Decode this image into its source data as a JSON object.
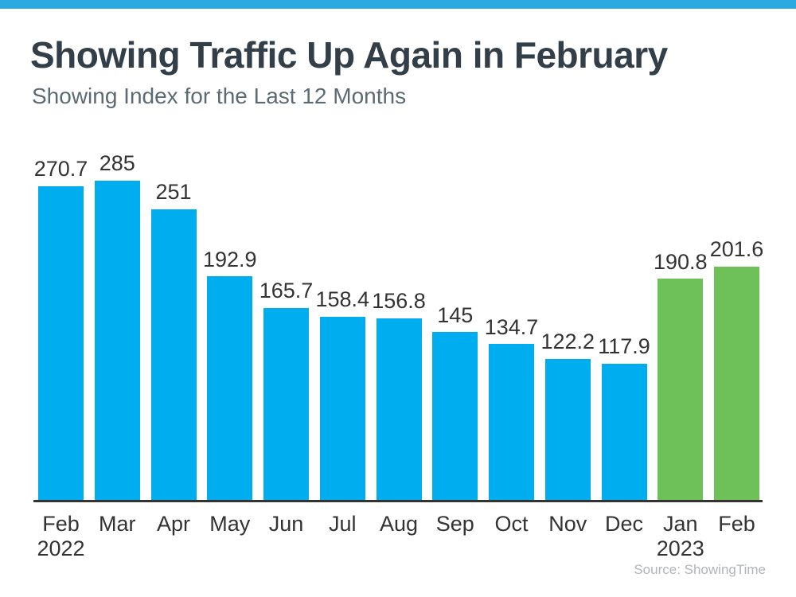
{
  "page": {
    "background_color": "#FFFFFF",
    "top_accent_color": "#29ABE2"
  },
  "chart_data": {
    "type": "bar",
    "title": "Showing Traffic Up Again in February",
    "subtitle": "Showing Index for the Last 12 Months",
    "xlabel": "",
    "ylabel": "",
    "ylim": [
      0,
      300
    ],
    "grid": false,
    "legend": false,
    "value_labels_shown": true,
    "axis_line_color": "#333333",
    "label_color": "#333333",
    "bar_colors": {
      "blue": "#00AEEF",
      "green": "#6EC158"
    },
    "points": [
      {
        "month": "Feb",
        "year": "2022",
        "value": 270.7,
        "color": "blue"
      },
      {
        "month": "Mar",
        "value": 285,
        "color": "blue"
      },
      {
        "month": "Apr",
        "value": 251,
        "color": "blue"
      },
      {
        "month": "May",
        "value": 192.9,
        "color": "blue"
      },
      {
        "month": "Jun",
        "value": 165.7,
        "color": "blue"
      },
      {
        "month": "Jul",
        "value": 158.4,
        "color": "blue"
      },
      {
        "month": "Aug",
        "value": 156.8,
        "color": "blue"
      },
      {
        "month": "Sep",
        "value": 145,
        "color": "blue"
      },
      {
        "month": "Oct",
        "value": 134.7,
        "color": "blue"
      },
      {
        "month": "Nov",
        "value": 122.2,
        "color": "blue"
      },
      {
        "month": "Dec",
        "value": 117.9,
        "color": "blue"
      },
      {
        "month": "Jan",
        "year": "2023",
        "value": 190.8,
        "color": "green"
      },
      {
        "month": "Feb",
        "value": 201.6,
        "color": "green"
      }
    ]
  },
  "source": {
    "label": "Source: ShowingTime"
  }
}
